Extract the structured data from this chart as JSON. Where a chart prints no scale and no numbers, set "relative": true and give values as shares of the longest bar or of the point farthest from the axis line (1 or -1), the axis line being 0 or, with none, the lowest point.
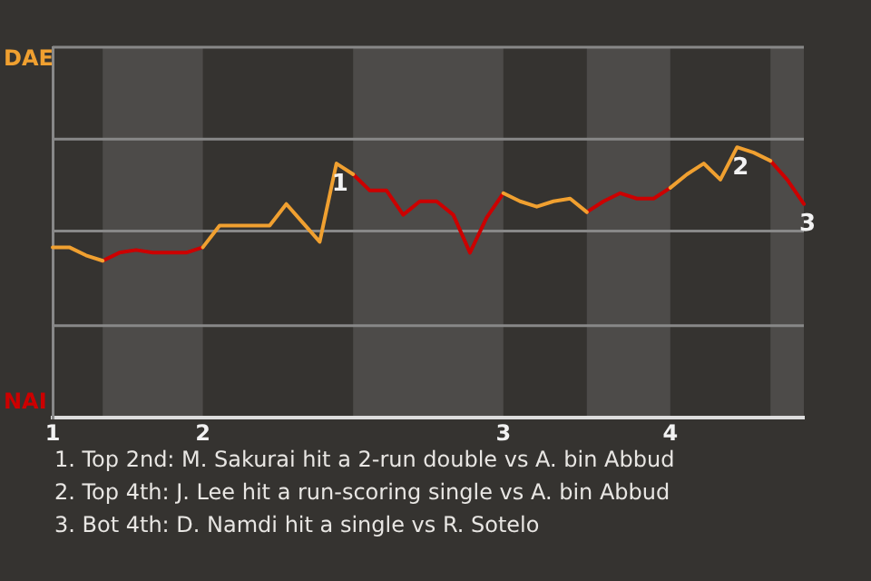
{
  "chart_data": {
    "type": "line",
    "relative": true,
    "categories": [
      "1",
      null,
      null,
      null,
      null,
      null,
      null,
      null,
      null,
      "2",
      null,
      null,
      null,
      null,
      null,
      null,
      null,
      null,
      null,
      null,
      null,
      null,
      null,
      null,
      null,
      null,
      null,
      "3",
      null,
      null,
      null,
      null,
      null,
      null,
      null,
      null,
      null,
      "4",
      null,
      null,
      null,
      null,
      null,
      null,
      null,
      null
    ],
    "legend": false,
    "marker": "none",
    "line_style": "solid",
    "ref_lines": [
      {
        "axis": "y",
        "value": 0.34,
        "color": "#888888"
      },
      {
        "axis": "y",
        "value": 0.69,
        "color": "#888888"
      },
      {
        "axis": "y",
        "value": 1.03,
        "color": "#888888"
      }
    ],
    "series": [
      {
        "color": "#f0a030",
        "values": [
          0.63,
          0.63,
          0.6,
          0.58,
          null,
          null,
          null,
          null,
          null,
          0.63,
          0.71,
          0.71,
          0.71,
          0.71,
          0.79,
          0.72,
          0.65,
          0.94,
          0.9,
          null,
          null,
          null,
          null,
          null,
          null,
          null,
          null,
          0.83,
          0.8,
          0.78,
          0.8,
          0.81,
          0.76,
          null,
          null,
          null,
          null,
          0.85,
          0.9,
          0.94,
          0.88,
          1,
          0.98,
          0.95,
          null,
          null
        ]
      },
      {
        "color": "#cc0000",
        "values": [
          null,
          null,
          null,
          0.58,
          0.61,
          0.62,
          0.61,
          0.61,
          0.61,
          0.63,
          null,
          null,
          null,
          null,
          null,
          null,
          null,
          null,
          0.9,
          0.84,
          0.84,
          0.75,
          0.8,
          0.8,
          0.75,
          0.61,
          0.74,
          0.83,
          null,
          null,
          null,
          null,
          0.76,
          0.8,
          0.83,
          0.81,
          0.81,
          0.85,
          null,
          null,
          null,
          null,
          null,
          0.95,
          0.88,
          0.79
        ]
      }
    ],
    "annotations": [
      "DAE",
      "NAI",
      {
        "text": "1",
        "y": 0.94
      },
      {
        "text": "2",
        "y": 1
      },
      {
        "text": "3",
        "y": 0.79
      },
      "1. Top 2nd: M. Sakurai hit a 2-run double vs A. bin Abbud",
      "2. Top 4th: J. Lee hit a run-scoring single vs A. bin Abbud",
      "3. Bot 4th: D. Namdi hit a single vs R. Sotelo"
    ]
  }
}
